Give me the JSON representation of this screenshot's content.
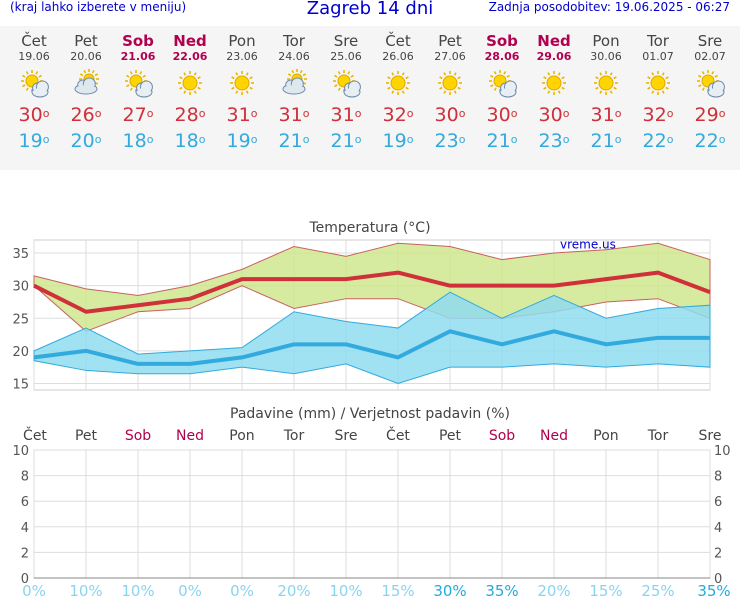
{
  "header": {
    "menu_hint": "(kraj lahko izberete v meniju)",
    "title": "Zagreb 14 dni",
    "last_update": "Zadnja posodobitev: 19.06.2025 - 06:27"
  },
  "days": [
    {
      "name": "Čet",
      "date": "19.06",
      "weekend": false,
      "icon": "sun-cloud-icon",
      "max": "30",
      "min": "19",
      "rain_pct": "0%"
    },
    {
      "name": "Pet",
      "date": "20.06",
      "weekend": false,
      "icon": "cloud-sun-icon",
      "max": "26",
      "min": "20",
      "rain_pct": "10%"
    },
    {
      "name": "Sob",
      "date": "21.06",
      "weekend": true,
      "icon": "sun-cloud-icon",
      "max": "27",
      "min": "18",
      "rain_pct": "10%"
    },
    {
      "name": "Ned",
      "date": "22.06",
      "weekend": true,
      "icon": "sun-icon",
      "max": "28",
      "min": "18",
      "rain_pct": "0%"
    },
    {
      "name": "Pon",
      "date": "23.06",
      "weekend": false,
      "icon": "sun-icon",
      "max": "31",
      "min": "19",
      "rain_pct": "0%"
    },
    {
      "name": "Tor",
      "date": "24.06",
      "weekend": false,
      "icon": "cloud-sun-icon",
      "max": "31",
      "min": "21",
      "rain_pct": "20%"
    },
    {
      "name": "Sre",
      "date": "25.06",
      "weekend": false,
      "icon": "sun-cloud-icon",
      "max": "31",
      "min": "21",
      "rain_pct": "10%"
    },
    {
      "name": "Čet",
      "date": "26.06",
      "weekend": false,
      "icon": "sun-icon",
      "max": "32",
      "min": "19",
      "rain_pct": "15%"
    },
    {
      "name": "Pet",
      "date": "27.06",
      "weekend": false,
      "icon": "sun-icon",
      "max": "30",
      "min": "23",
      "rain_pct": "30%"
    },
    {
      "name": "Sob",
      "date": "28.06",
      "weekend": true,
      "icon": "sun-cloud-icon",
      "max": "30",
      "min": "21",
      "rain_pct": "35%"
    },
    {
      "name": "Ned",
      "date": "29.06",
      "weekend": true,
      "icon": "sun-icon",
      "max": "30",
      "min": "23",
      "rain_pct": "20%"
    },
    {
      "name": "Pon",
      "date": "30.06",
      "weekend": false,
      "icon": "sun-icon",
      "max": "31",
      "min": "21",
      "rain_pct": "15%"
    },
    {
      "name": "Tor",
      "date": "01.07",
      "weekend": false,
      "icon": "sun-icon",
      "max": "32",
      "min": "22",
      "rain_pct": "25%"
    },
    {
      "name": "Sre",
      "date": "02.07",
      "weekend": false,
      "icon": "sun-cloud-icon",
      "max": "29",
      "min": "22",
      "rain_pct": "35%"
    }
  ],
  "colors": {
    "max_line": "#d0303a",
    "min_line": "#33aadd",
    "max_band": "#cfe88e",
    "min_band": "#8fdcf0",
    "weekend": "#b0004f",
    "title": "#0000cc",
    "pct_light": "#8ad4ee",
    "pct_dark": "#22aadd"
  },
  "chart_data": [
    {
      "type": "line",
      "title": "Temperatura (°C)",
      "watermark": "vreme.us",
      "ylim": [
        14,
        37
      ],
      "yticks": [
        15,
        20,
        25,
        30,
        35
      ],
      "categories": [
        "19.06",
        "20.06",
        "21.06",
        "22.06",
        "23.06",
        "24.06",
        "25.06",
        "26.06",
        "27.06",
        "28.06",
        "29.06",
        "30.06",
        "01.07",
        "02.07"
      ],
      "series": [
        {
          "values": [
            30,
            26,
            27,
            28,
            31,
            31,
            31,
            32,
            30,
            30,
            30,
            31,
            32,
            29
          ]
        },
        {
          "values": [
            19,
            20,
            18,
            18,
            19,
            21,
            21,
            19,
            23,
            21,
            23,
            21,
            22,
            22
          ]
        }
      ],
      "max_band_high": [
        31.5,
        29.5,
        28.5,
        30,
        32.5,
        36,
        34.5,
        36.5,
        36,
        34,
        35,
        35.5,
        36.5,
        34
      ],
      "max_band_low": [
        30,
        23,
        26,
        26.5,
        30,
        26.5,
        28,
        28,
        25,
        25,
        26,
        27.5,
        28,
        25
      ],
      "min_band_high": [
        20,
        23.5,
        19.5,
        20,
        20.5,
        26,
        24.5,
        23.5,
        29,
        25,
        28.5,
        25,
        26.5,
        27
      ],
      "min_band_low": [
        18.5,
        17,
        16.5,
        16.5,
        17.5,
        16.5,
        18,
        15,
        17.5,
        17.5,
        18,
        17.5,
        18,
        17.5
      ]
    },
    {
      "type": "bar",
      "title": "Padavine (mm) / Verjetnost padavin (%)",
      "ylim": [
        0,
        10
      ],
      "yticks": [
        0,
        2,
        4,
        6,
        8,
        10
      ],
      "values": [
        0,
        0,
        0,
        0,
        0,
        0,
        0,
        0,
        0,
        0,
        0,
        0,
        0,
        0
      ],
      "probability": [
        0,
        10,
        10,
        0,
        0,
        20,
        10,
        15,
        30,
        35,
        20,
        15,
        25,
        35
      ]
    }
  ]
}
